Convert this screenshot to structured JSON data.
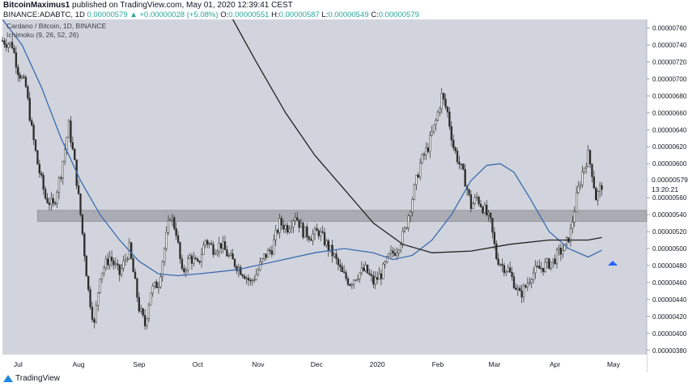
{
  "header": {
    "publisher": "BitcoinMaximus1",
    "published_text": "published on TradingView.com, May 01, 2020 12:39:41 CEST"
  },
  "ohlc": {
    "symbol": "BINANCE:ADABTC, 1D",
    "open": "0.00000579",
    "change": "▲ +0.00000028 (+5.08%)",
    "o_label": "O:",
    "o_value": "0.00000551",
    "h_label": "H:",
    "h_value": "0.00000587",
    "l_label": "L:",
    "l_value": "0.00000549",
    "c_label": "C:",
    "c_value": "0.00000579"
  },
  "legend": {
    "title": "Cardano / Bitcoin, 1D, BINANCE",
    "indicator": "Ichimoku (9, 26, 52, 26)"
  },
  "price_tag": {
    "price": "0.00000579",
    "countdown": "13:20:21"
  },
  "footer": {
    "brand": "TradingView"
  },
  "colors": {
    "background": "#d1d4dc",
    "up": "#2b2b2b",
    "down": "#2b2b2b",
    "zone": "#9e9fa6",
    "ma_blue": "#3c6bb0",
    "ma_black": "#222222",
    "arrow": "#2962ff"
  },
  "chart_data": {
    "type": "candlestick",
    "yaxis_ticks": [
      "0.00000760",
      "0.00000740",
      "0.00000720",
      "0.00000700",
      "0.00000680",
      "0.00000660",
      "0.00000640",
      "0.00000620",
      "0.00000600",
      "0.00000580",
      "0.00000560",
      "0.00000540",
      "0.00000520",
      "0.00000500",
      "0.00000480",
      "0.00000460",
      "0.00000440",
      "0.00000420",
      "0.00000400",
      "0.00000380"
    ],
    "y_tick_values": [
      760,
      740,
      720,
      700,
      680,
      660,
      640,
      620,
      600,
      580,
      560,
      540,
      520,
      500,
      480,
      460,
      440,
      420,
      400,
      380
    ],
    "ylim": [
      375,
      770
    ],
    "x_ticks": [
      "Jul",
      "Aug",
      "Sep",
      "Oct",
      "Nov",
      "Dec",
      "2020",
      "Feb",
      "Mar",
      "Apr",
      "May"
    ],
    "x_tick_days": [
      8,
      39,
      70,
      100,
      131,
      161,
      192,
      223,
      252,
      283,
      313
    ],
    "xlim": [
      0,
      330
    ],
    "support_zone": [
      532,
      545
    ],
    "price_path": [
      [
        0,
        745
      ],
      [
        5,
        740
      ],
      [
        8,
        710
      ],
      [
        12,
        690
      ],
      [
        15,
        640
      ],
      [
        18,
        600
      ],
      [
        22,
        560
      ],
      [
        26,
        550
      ],
      [
        30,
        590
      ],
      [
        34,
        645
      ],
      [
        37,
        600
      ],
      [
        40,
        540
      ],
      [
        44,
        450
      ],
      [
        47,
        410
      ],
      [
        50,
        470
      ],
      [
        55,
        490
      ],
      [
        60,
        470
      ],
      [
        65,
        500
      ],
      [
        70,
        430
      ],
      [
        73,
        410
      ],
      [
        76,
        450
      ],
      [
        80,
        460
      ],
      [
        83,
        500
      ],
      [
        86,
        540
      ],
      [
        89,
        520
      ],
      [
        92,
        470
      ],
      [
        96,
        490
      ],
      [
        100,
        480
      ],
      [
        104,
        510
      ],
      [
        108,
        500
      ],
      [
        112,
        505
      ],
      [
        116,
        490
      ],
      [
        120,
        480
      ],
      [
        124,
        470
      ],
      [
        127,
        460
      ],
      [
        130,
        470
      ],
      [
        134,
        490
      ],
      [
        138,
        500
      ],
      [
        142,
        530
      ],
      [
        146,
        525
      ],
      [
        150,
        540
      ],
      [
        154,
        520
      ],
      [
        158,
        515
      ],
      [
        162,
        520
      ],
      [
        166,
        505
      ],
      [
        170,
        490
      ],
      [
        174,
        470
      ],
      [
        178,
        460
      ],
      [
        182,
        470
      ],
      [
        186,
        475
      ],
      [
        190,
        460
      ],
      [
        194,
        470
      ],
      [
        198,
        490
      ],
      [
        202,
        500
      ],
      [
        206,
        520
      ],
      [
        210,
        560
      ],
      [
        214,
        600
      ],
      [
        218,
        620
      ],
      [
        222,
        650
      ],
      [
        225,
        680
      ],
      [
        228,
        660
      ],
      [
        231,
        620
      ],
      [
        234,
        600
      ],
      [
        237,
        580
      ],
      [
        240,
        550
      ],
      [
        243,
        560
      ],
      [
        247,
        545
      ],
      [
        250,
        530
      ],
      [
        253,
        490
      ],
      [
        256,
        480
      ],
      [
        259,
        475
      ],
      [
        262,
        460
      ],
      [
        265,
        445
      ],
      [
        268,
        455
      ],
      [
        271,
        470
      ],
      [
        274,
        475
      ],
      [
        278,
        480
      ],
      [
        282,
        485
      ],
      [
        285,
        495
      ],
      [
        288,
        500
      ],
      [
        291,
        520
      ],
      [
        294,
        560
      ],
      [
        297,
        590
      ],
      [
        300,
        610
      ],
      [
        302,
        590
      ],
      [
        304,
        560
      ],
      [
        307,
        575
      ]
    ],
    "ma_blue": [
      [
        0,
        770
      ],
      [
        10,
        740
      ],
      [
        20,
        690
      ],
      [
        30,
        630
      ],
      [
        40,
        580
      ],
      [
        50,
        540
      ],
      [
        60,
        510
      ],
      [
        70,
        485
      ],
      [
        80,
        470
      ],
      [
        90,
        468
      ],
      [
        100,
        470
      ],
      [
        120,
        475
      ],
      [
        140,
        485
      ],
      [
        160,
        495
      ],
      [
        175,
        500
      ],
      [
        190,
        495
      ],
      [
        200,
        487
      ],
      [
        210,
        492
      ],
      [
        220,
        510
      ],
      [
        230,
        540
      ],
      [
        240,
        580
      ],
      [
        248,
        598
      ],
      [
        255,
        600
      ],
      [
        262,
        590
      ],
      [
        270,
        560
      ],
      [
        280,
        520
      ],
      [
        290,
        500
      ],
      [
        300,
        490
      ],
      [
        307,
        498
      ]
    ],
    "ma_black": [
      [
        118,
        770
      ],
      [
        130,
        720
      ],
      [
        145,
        660
      ],
      [
        160,
        610
      ],
      [
        175,
        570
      ],
      [
        190,
        530
      ],
      [
        205,
        505
      ],
      [
        220,
        495
      ],
      [
        240,
        497
      ],
      [
        260,
        505
      ],
      [
        280,
        510
      ],
      [
        300,
        510
      ],
      [
        307,
        513
      ]
    ]
  }
}
